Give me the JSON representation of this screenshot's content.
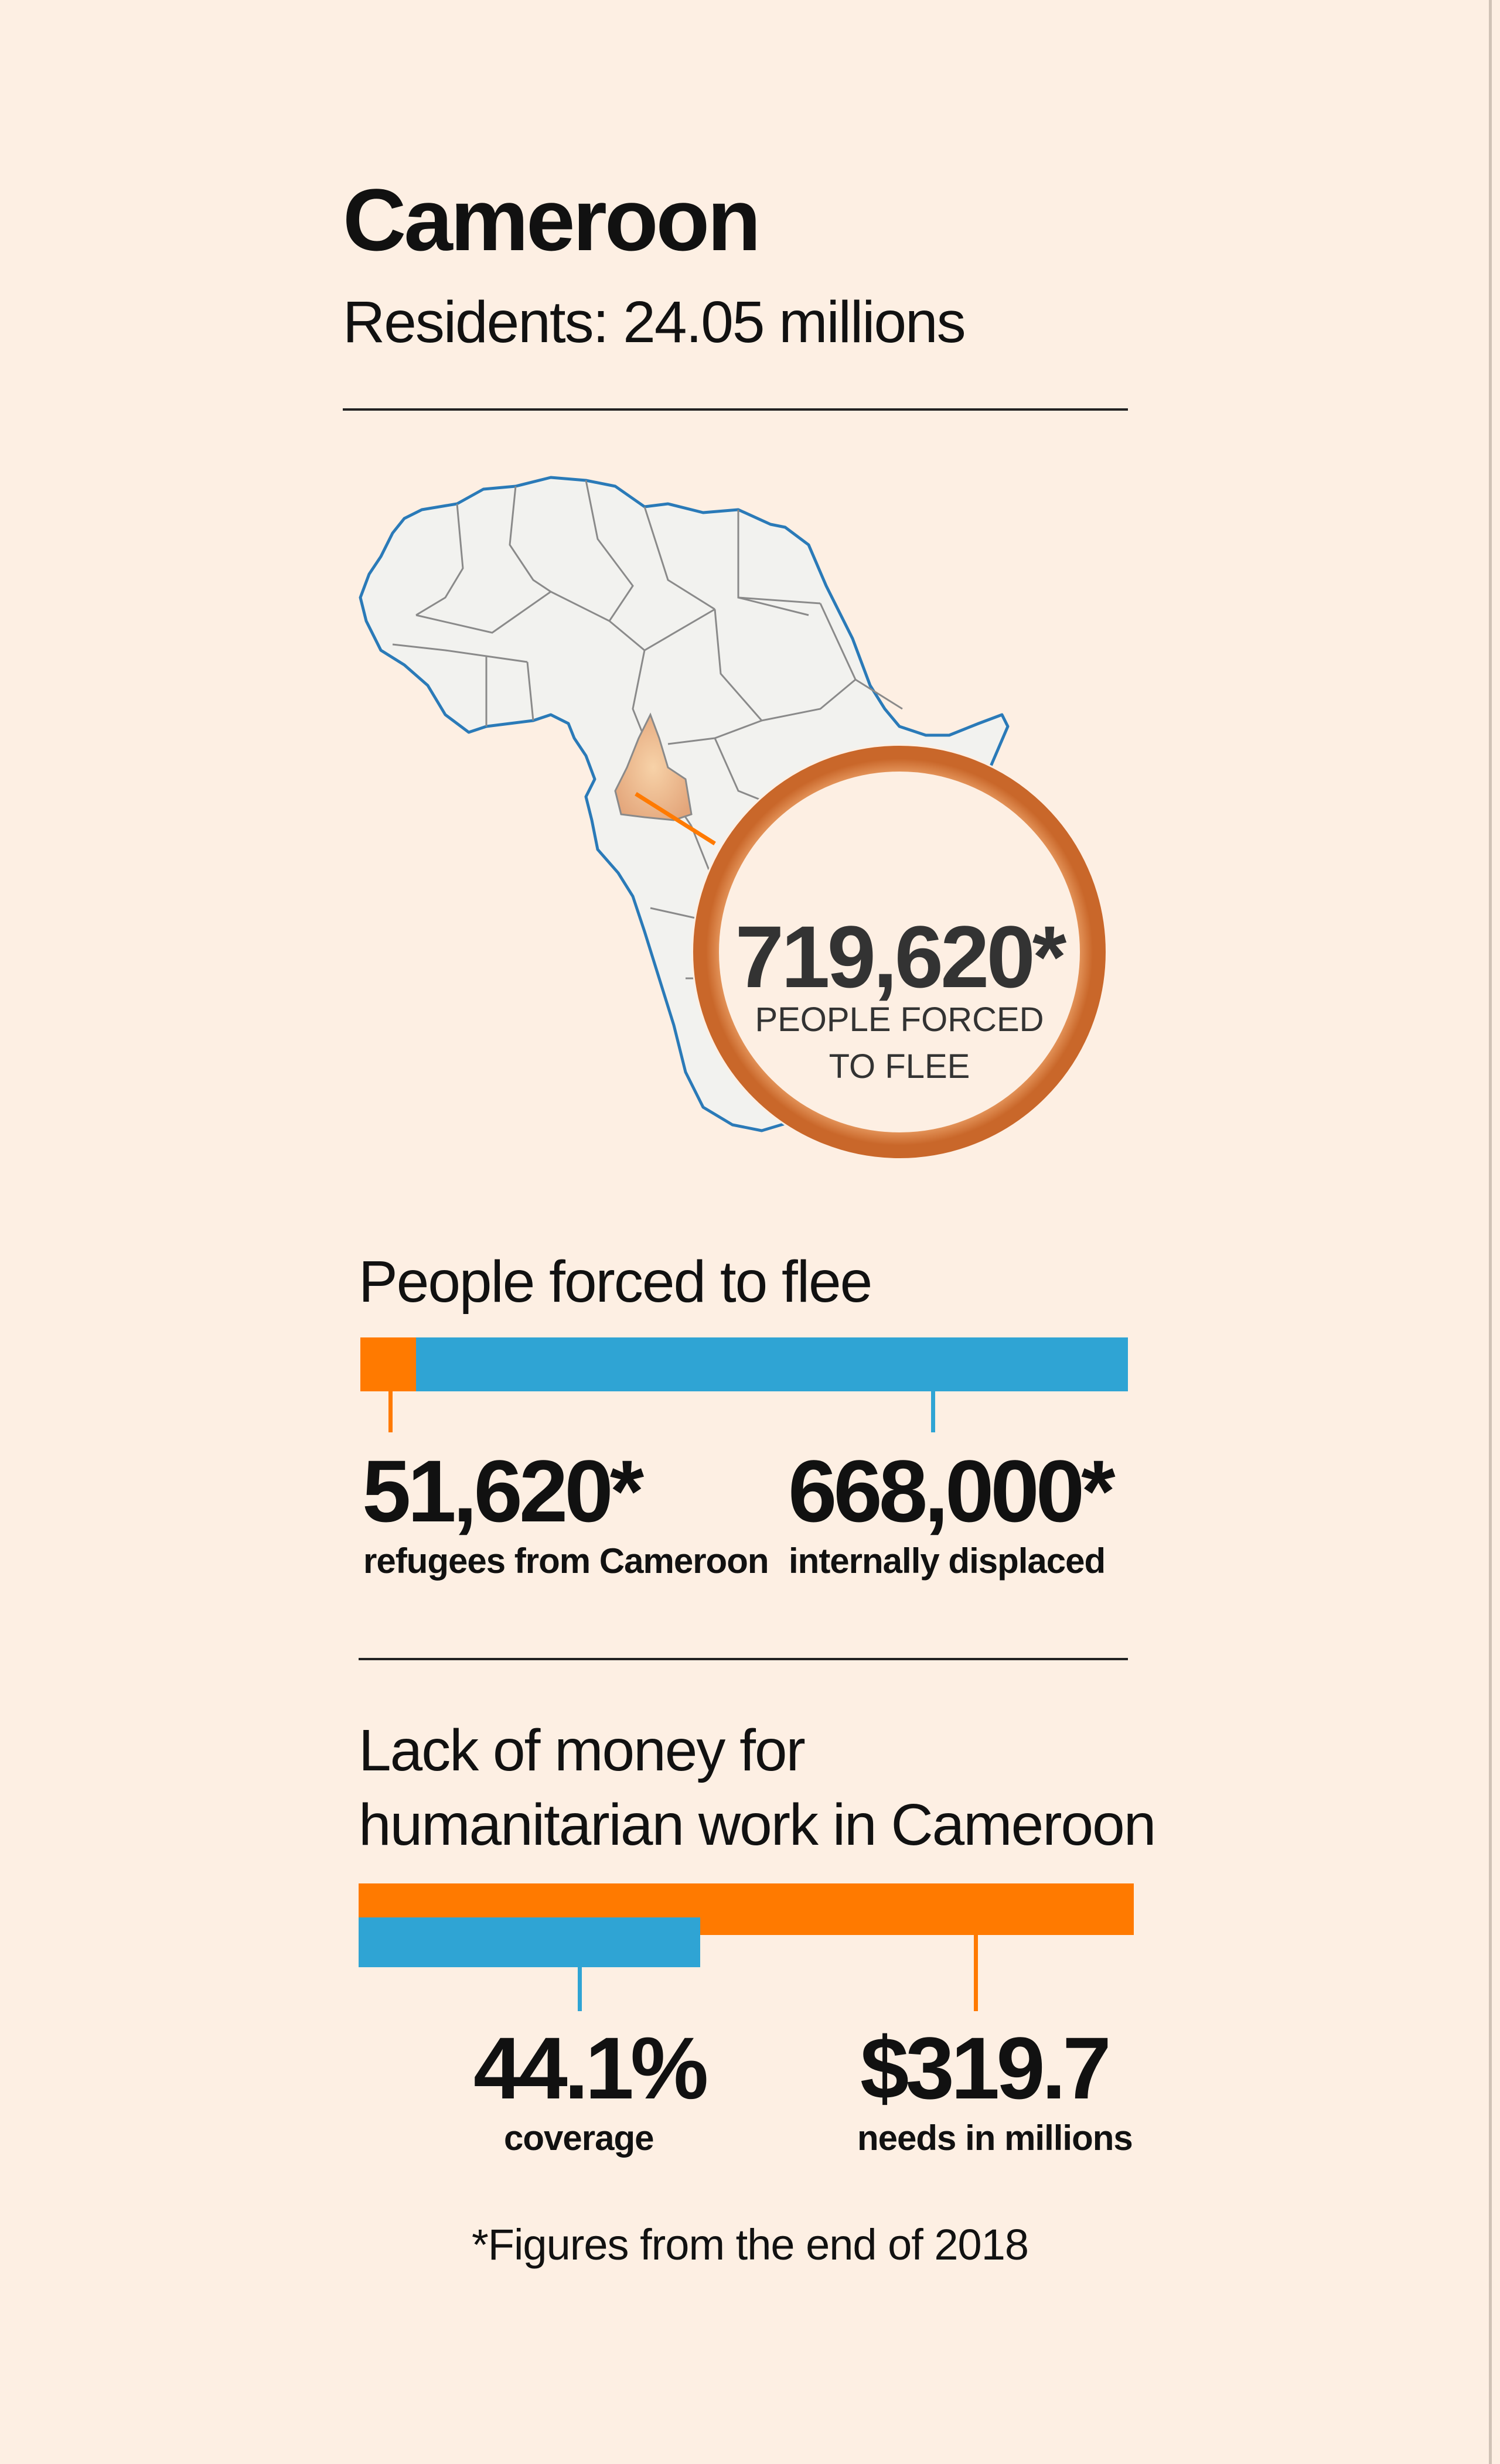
{
  "header": {
    "title": "Cameroon",
    "residents": "Residents: 24.05 millions"
  },
  "map": {
    "highlight_country": "Cameroon",
    "circle_value": "719,620*",
    "circle_label_line1": "PEOPLE FORCED",
    "circle_label_line2": "TO FLEE"
  },
  "section1": {
    "title": "People forced to flee",
    "left_value": "51,620*",
    "left_label": "refugees from Cameroon",
    "right_value": "668,000*",
    "right_label": "internally displaced"
  },
  "section2": {
    "title_line1": "Lack of money for",
    "title_line2": "humanitarian work in Cameroon",
    "left_value": "44.1%",
    "left_label": "coverage",
    "right_value": "$319.7",
    "right_label": "needs in millions"
  },
  "footnote": "*Figures from the end of 2018",
  "colors": {
    "background": "#fdefe3",
    "orange": "#ff7a00",
    "blue": "#2fa4d4",
    "circle": "#d87a3b",
    "map_land": "#f2f2ef",
    "map_coast": "#2a7ab8"
  },
  "chart_data": [
    {
      "type": "bar",
      "title": "People forced to flee",
      "stacked": true,
      "orientation": "horizontal",
      "series": [
        {
          "name": "refugees from Cameroon",
          "values": [
            51620
          ]
        },
        {
          "name": "internally displaced",
          "values": [
            668000
          ]
        }
      ],
      "total": 719620
    },
    {
      "type": "bar",
      "title": "Lack of money for humanitarian work in Cameroon",
      "orientation": "horizontal",
      "series": [
        {
          "name": "needs in millions",
          "values": [
            319.7
          ]
        },
        {
          "name": "coverage",
          "values": [
            44.1
          ],
          "unit": "%"
        }
      ]
    }
  ]
}
